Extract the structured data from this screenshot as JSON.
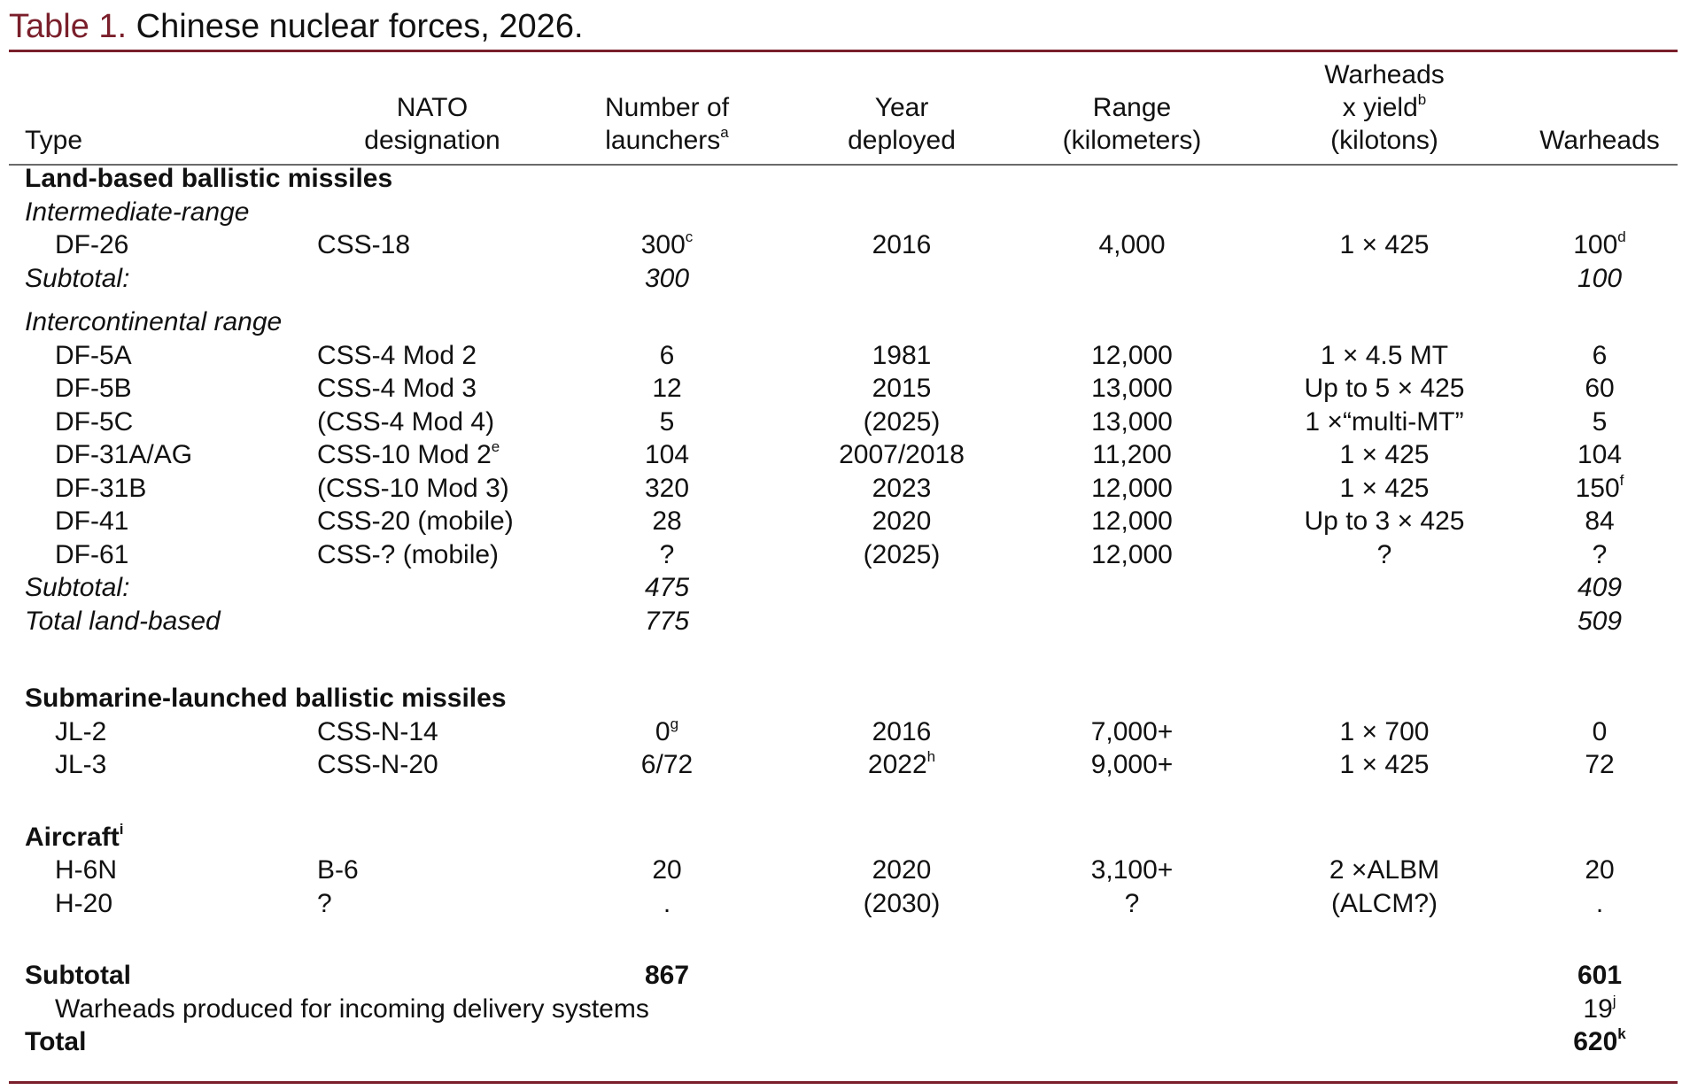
{
  "caption": {
    "label": "Table 1.",
    "text": "Chinese nuclear forces, 2026."
  },
  "columns": {
    "type": "Type",
    "nato_1": "NATO",
    "nato_2": "designation",
    "launchers_1": "Number of",
    "launchers_2": "launchers",
    "launchers_note": "a",
    "year_1": "Year",
    "year_2": "deployed",
    "range_1": "Range",
    "range_2": "(kilometers)",
    "yield_1": "Warheads",
    "yield_2": "x yield",
    "yield_note": "b",
    "yield_3": "(kilotons)",
    "warheads": "Warheads"
  },
  "land": {
    "heading": "Land-based ballistic missiles",
    "irbm": {
      "heading": "Intermediate-range",
      "rows": [
        {
          "type": "DF-26",
          "nato": "CSS-18",
          "launchers": "300",
          "launchers_note": "c",
          "year": "2016",
          "range": "4,000",
          "yield": "1 × 425",
          "warheads": "100",
          "warheads_note": "d"
        }
      ],
      "subtotal_label": "Subtotal:",
      "subtotal_launchers": "300",
      "subtotal_warheads": "100"
    },
    "icbm": {
      "heading": "Intercontinental range",
      "rows": [
        {
          "type": "DF-5A",
          "nato": "CSS-4 Mod 2",
          "launchers": "6",
          "year": "1981",
          "range": "12,000",
          "yield": "1 × 4.5 MT",
          "warheads": "6"
        },
        {
          "type": "DF-5B",
          "nato": "CSS-4 Mod 3",
          "launchers": "12",
          "year": "2015",
          "range": "13,000",
          "yield": "Up to 5 × 425",
          "warheads": "60"
        },
        {
          "type": "DF-5C",
          "nato": "(CSS-4 Mod 4)",
          "launchers": "5",
          "year": "(2025)",
          "range": "13,000",
          "yield": "1 ×“multi-MT”",
          "warheads": "5"
        },
        {
          "type": "DF-31A/AG",
          "nato": "CSS-10 Mod 2",
          "nato_note": "e",
          "launchers": "104",
          "year": "2007/2018",
          "range": "11,200",
          "yield": "1 × 425",
          "warheads": "104"
        },
        {
          "type": "DF-31B",
          "nato": "(CSS-10 Mod 3)",
          "launchers": "320",
          "year": "2023",
          "range": "12,000",
          "yield": "1 × 425",
          "warheads": "150",
          "warheads_note": "f"
        },
        {
          "type": "DF-41",
          "nato": "CSS-20 (mobile)",
          "launchers": "28",
          "year": "2020",
          "range": "12,000",
          "yield": "Up to 3 × 425",
          "warheads": "84"
        },
        {
          "type": "DF-61",
          "nato": "CSS-? (mobile)",
          "launchers": "?",
          "year": "(2025)",
          "range": "12,000",
          "yield": "?",
          "warheads": "?"
        }
      ],
      "subtotal_label": "Subtotal:",
      "subtotal_launchers": "475",
      "subtotal_warheads": "409"
    },
    "total_label": "Total land-based",
    "total_launchers": "775",
    "total_warheads": "509"
  },
  "slbm": {
    "heading": "Submarine-launched ballistic missiles",
    "rows": [
      {
        "type": "JL-2",
        "nato": "CSS-N-14",
        "launchers": "0",
        "launchers_note": "g",
        "year": "2016",
        "range": "7,000+",
        "yield": "1 × 700",
        "warheads": "0"
      },
      {
        "type": "JL-3",
        "nato": "CSS-N-20",
        "launchers": "6/72",
        "year": "2022",
        "year_note": "h",
        "range": "9,000+",
        "yield": "1 × 425",
        "warheads": "72"
      }
    ]
  },
  "aircraft": {
    "heading": "Aircraft",
    "heading_note": "i",
    "rows": [
      {
        "type": "H-6N",
        "nato": "B-6",
        "launchers": "20",
        "year": "2020",
        "range": "3,100+",
        "yield": "2 ×ALBM",
        "warheads": "20"
      },
      {
        "type": "H-20",
        "nato": "?",
        "launchers": ".",
        "year": "(2030)",
        "range": "?",
        "yield": "(ALCM?)",
        "warheads": "."
      }
    ]
  },
  "summary": {
    "subtotal_label": "Subtotal",
    "subtotal_launchers": "867",
    "subtotal_warheads": "601",
    "produced_label": "Warheads produced for incoming delivery systems",
    "produced_warheads": "19",
    "produced_note": "j",
    "total_label": "Total",
    "total_warheads": "620",
    "total_note": "k"
  },
  "colors": {
    "accent": "#7a1f2b",
    "header_rule": "#6a6a6a",
    "text": "#111111"
  }
}
